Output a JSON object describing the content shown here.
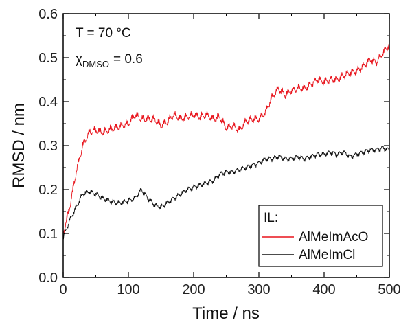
{
  "chart_data": {
    "type": "line",
    "title": "",
    "xlabel": "Time / ns",
    "ylabel": "RMSD / nm",
    "xlim": [
      0,
      500
    ],
    "ylim": [
      0.0,
      0.6
    ],
    "x_ticks": [
      0,
      100,
      200,
      300,
      400,
      500
    ],
    "y_ticks": [
      0.0,
      0.1,
      0.2,
      0.3,
      0.4,
      0.5,
      0.6
    ],
    "x_tick_labels": [
      "0",
      "100",
      "200",
      "300",
      "400",
      "500"
    ],
    "y_tick_labels": [
      "0.0",
      "0.1",
      "0.2",
      "0.3",
      "0.4",
      "0.5",
      "0.6"
    ],
    "grid": false,
    "legend_position": "bottom-right",
    "legend_title": "IL:",
    "annotations": {
      "temperature": "T = 70 °C",
      "chi_symbol": "χ",
      "chi_subscript": "DMSO",
      "chi_value": "= 0.6"
    },
    "series": [
      {
        "name": "AlMeImAcO",
        "color": "#e8141c",
        "x": [
          0,
          10,
          20,
          30,
          40,
          50,
          60,
          70,
          80,
          90,
          100,
          110,
          120,
          130,
          140,
          150,
          160,
          170,
          180,
          190,
          200,
          210,
          220,
          230,
          240,
          250,
          260,
          270,
          280,
          290,
          300,
          310,
          320,
          330,
          340,
          350,
          360,
          370,
          380,
          390,
          400,
          410,
          420,
          430,
          440,
          450,
          460,
          470,
          480,
          490,
          500
        ],
        "y": [
          0.1,
          0.16,
          0.24,
          0.3,
          0.33,
          0.335,
          0.33,
          0.335,
          0.34,
          0.345,
          0.35,
          0.37,
          0.36,
          0.36,
          0.36,
          0.345,
          0.355,
          0.37,
          0.36,
          0.365,
          0.37,
          0.365,
          0.37,
          0.36,
          0.365,
          0.34,
          0.345,
          0.335,
          0.355,
          0.36,
          0.36,
          0.375,
          0.41,
          0.43,
          0.415,
          0.425,
          0.43,
          0.43,
          0.44,
          0.45,
          0.445,
          0.45,
          0.45,
          0.46,
          0.465,
          0.47,
          0.48,
          0.495,
          0.49,
          0.51,
          0.53
        ]
      },
      {
        "name": "AlMeImCl",
        "color": "#111111",
        "x": [
          0,
          10,
          20,
          30,
          40,
          50,
          60,
          70,
          80,
          90,
          100,
          110,
          120,
          130,
          140,
          150,
          160,
          170,
          180,
          190,
          200,
          210,
          220,
          230,
          240,
          250,
          260,
          270,
          280,
          290,
          300,
          310,
          320,
          330,
          340,
          350,
          360,
          370,
          380,
          390,
          400,
          410,
          420,
          430,
          440,
          450,
          460,
          470,
          480,
          490,
          500
        ],
        "y": [
          0.09,
          0.13,
          0.16,
          0.19,
          0.195,
          0.19,
          0.18,
          0.175,
          0.17,
          0.17,
          0.175,
          0.18,
          0.2,
          0.18,
          0.165,
          0.16,
          0.17,
          0.18,
          0.19,
          0.2,
          0.205,
          0.21,
          0.215,
          0.22,
          0.235,
          0.24,
          0.24,
          0.245,
          0.25,
          0.255,
          0.26,
          0.27,
          0.27,
          0.275,
          0.27,
          0.27,
          0.275,
          0.27,
          0.275,
          0.28,
          0.28,
          0.285,
          0.28,
          0.285,
          0.275,
          0.28,
          0.285,
          0.29,
          0.29,
          0.295,
          0.29
        ]
      }
    ]
  }
}
